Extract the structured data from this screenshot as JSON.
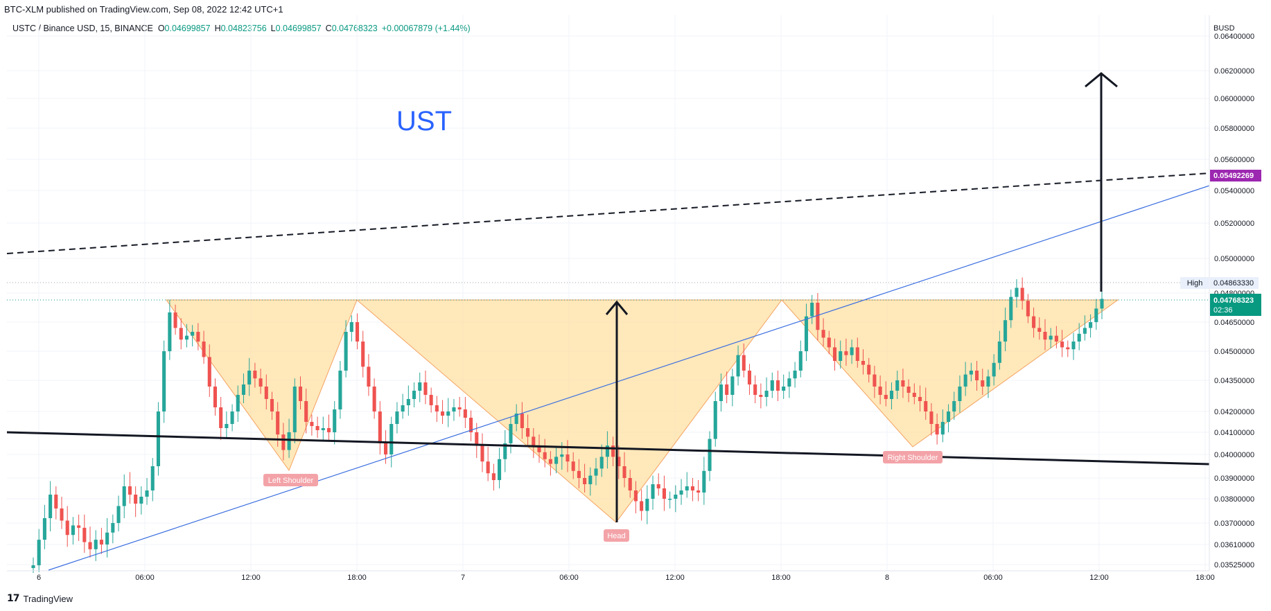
{
  "header": {
    "published": "BTC-XLM published on TradingView.com, Sep 08, 2022 12:42 UTC+1"
  },
  "legend": {
    "symbol": "USTC / Binance USD, 15, BINANCE",
    "open_label": "O",
    "open": "0.04699857",
    "high_label": "H",
    "high": "0.04823756",
    "low_label": "L",
    "low": "0.04699857",
    "close_label": "C",
    "close": "0.04768323",
    "change": "+0.00067879 (+1.44%)"
  },
  "footer": {
    "brand": "TradingView",
    "logo_glyph": "17"
  },
  "colors": {
    "up": "#26a69a",
    "down": "#ef5350",
    "pattern_fill": "#ffe0a3",
    "trendline": "#3b6fe0",
    "price_badge": "#089981",
    "target_badge": "#9c27b0",
    "title": "#2962ff",
    "label_bg": "#f3a3a8"
  },
  "chart_data": {
    "type": "candlestick",
    "title": "UST",
    "currency": "BUSD",
    "x_ticks": [
      "6",
      "06:00",
      "12:00",
      "18:00",
      "7",
      "06:00",
      "12:00",
      "18:00",
      "8",
      "06:00",
      "12:00",
      "18:00"
    ],
    "y_ticks": [
      "0.06400000",
      "0.06200000",
      "0.06000000",
      "0.05800000",
      "0.05600000",
      "0.05400000",
      "0.05200000",
      "0.05000000",
      "0.04800000",
      "0.04650000",
      "0.04500000",
      "0.04350000",
      "0.04200000",
      "0.04100000",
      "0.04000000",
      "0.03900000",
      "0.03800000",
      "0.03700000",
      "0.03610000",
      "0.03525000"
    ],
    "high_line": {
      "label": "High",
      "value": "0.04863330"
    },
    "last_price": {
      "value": "0.04768323",
      "countdown": "02:36"
    },
    "target_price": "0.05492269",
    "annotations": [
      "Left Shoulder",
      "Head",
      "Right Shoulder"
    ],
    "closes": [
      0.0352,
      0.0363,
      0.0372,
      0.0382,
      0.0376,
      0.0371,
      0.0365,
      0.0369,
      0.0368,
      0.0362,
      0.0359,
      0.0363,
      0.0361,
      0.0366,
      0.037,
      0.0377,
      0.0386,
      0.0382,
      0.0378,
      0.0381,
      0.0384,
      0.0395,
      0.042,
      0.045,
      0.047,
      0.0462,
      0.0456,
      0.0458,
      0.046,
      0.0455,
      0.0447,
      0.0432,
      0.0422,
      0.0412,
      0.0414,
      0.042,
      0.0428,
      0.0433,
      0.044,
      0.0436,
      0.0432,
      0.0426,
      0.042,
      0.0409,
      0.0402,
      0.041,
      0.0432,
      0.0425,
      0.0415,
      0.0413,
      0.0411,
      0.0412,
      0.041,
      0.0421,
      0.044,
      0.046,
      0.0465,
      0.0455,
      0.0442,
      0.0432,
      0.042,
      0.0405,
      0.04,
      0.0414,
      0.042,
      0.0423,
      0.0426,
      0.043,
      0.0434,
      0.0428,
      0.0423,
      0.042,
      0.0418,
      0.042,
      0.0422,
      0.0421,
      0.0417,
      0.041,
      0.0404,
      0.0397,
      0.0392,
      0.0389,
      0.0398,
      0.0405,
      0.0414,
      0.0419,
      0.0412,
      0.0408,
      0.0404,
      0.0401,
      0.0398,
      0.0396,
      0.0399,
      0.04,
      0.0397,
      0.0393,
      0.039,
      0.0387,
      0.0391,
      0.0394,
      0.0399,
      0.0404,
      0.0399,
      0.0395,
      0.039,
      0.0384,
      0.0379,
      0.0375,
      0.038,
      0.0387,
      0.0385,
      0.038,
      0.038,
      0.0382,
      0.0384,
      0.0386,
      0.0384,
      0.0383,
      0.0393,
      0.0407,
      0.0425,
      0.0433,
      0.0428,
      0.0437,
      0.0448,
      0.044,
      0.0433,
      0.0428,
      0.0427,
      0.043,
      0.0435,
      0.043,
      0.0432,
      0.0436,
      0.044,
      0.045,
      0.0468,
      0.0475,
      0.0461,
      0.0457,
      0.0452,
      0.0445,
      0.045,
      0.0448,
      0.0452,
      0.0445,
      0.0443,
      0.0438,
      0.0432,
      0.0428,
      0.0426,
      0.043,
      0.0435,
      0.0432,
      0.0429,
      0.0427,
      0.0425,
      0.042,
      0.0414,
      0.0409,
      0.0415,
      0.042,
      0.0425,
      0.0432,
      0.0438,
      0.044,
      0.0435,
      0.0432,
      0.0437,
      0.0444,
      0.0455,
      0.0466,
      0.0478,
      0.0483,
      0.0476,
      0.0468,
      0.0462,
      0.046,
      0.0456,
      0.0458,
      0.0455,
      0.0452,
      0.0451,
      0.0455,
      0.0459,
      0.0462,
      0.0465,
      0.0472,
      0.0477
    ]
  }
}
